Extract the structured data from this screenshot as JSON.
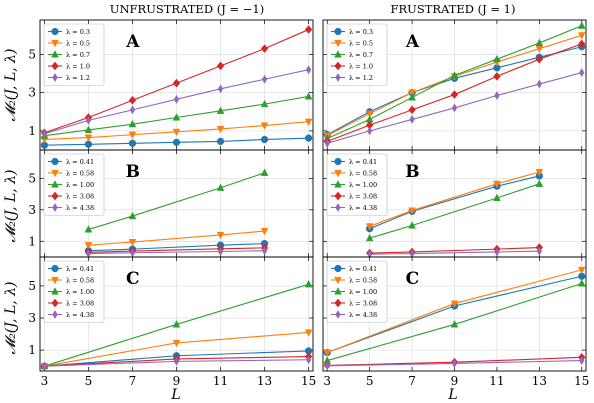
{
  "figure": {
    "column_titles": [
      "UNFRUSTRATED (J = −1)",
      "FRUSTRATED (J = 1)"
    ],
    "ylabel": "𝓜₂(J, L, λ)",
    "xlabel": "L",
    "colors": {
      "blue": "#1f77b4",
      "orange": "#ff7f0e",
      "green": "#2ca02c",
      "red": "#d62728",
      "purple": "#9467bd",
      "grid": "#d9d9d9"
    }
  },
  "chart_data": [
    {
      "type": "line",
      "panel": "A",
      "column": "unfrustrated",
      "xlim": [
        2.8,
        15.2
      ],
      "ylim": [
        0,
        6.8
      ],
      "xticks": [
        3,
        5,
        7,
        9,
        11,
        13,
        15
      ],
      "yticks": [
        1,
        3,
        5
      ],
      "legend_position": "top-left",
      "x": [
        3,
        5,
        7,
        9,
        11,
        13,
        15
      ],
      "series": [
        {
          "name": "λ = 0.3",
          "color": "#1f77b4",
          "marker": "circle",
          "values": [
            0.25,
            0.3,
            0.35,
            0.4,
            0.45,
            0.55,
            0.62
          ]
        },
        {
          "name": "λ = 0.5",
          "color": "#ff7f0e",
          "marker": "triangle-down",
          "values": [
            0.55,
            0.65,
            0.8,
            0.95,
            1.1,
            1.28,
            1.48
          ]
        },
        {
          "name": "λ = 0.7",
          "color": "#2ca02c",
          "marker": "triangle-up",
          "values": [
            0.75,
            1.05,
            1.35,
            1.7,
            2.05,
            2.4,
            2.8
          ]
        },
        {
          "name": "λ = 1.0",
          "color": "#d62728",
          "marker": "diamond",
          "values": [
            0.9,
            1.7,
            2.6,
            3.5,
            4.4,
            5.3,
            6.3
          ]
        },
        {
          "name": "λ = 1.2",
          "color": "#9467bd",
          "marker": "diamond-thin",
          "values": [
            0.85,
            1.55,
            2.1,
            2.65,
            3.2,
            3.7,
            4.2
          ]
        }
      ]
    },
    {
      "type": "line",
      "panel": "A",
      "column": "frustrated",
      "xlim": [
        2.8,
        15.2
      ],
      "ylim": [
        0,
        6.8
      ],
      "xticks": [
        3,
        5,
        7,
        9,
        11,
        13,
        15
      ],
      "yticks": [
        1,
        3,
        5
      ],
      "legend_position": "top-left",
      "x": [
        3,
        5,
        7,
        9,
        11,
        13,
        15
      ],
      "series": [
        {
          "name": "λ = 0.3",
          "color": "#1f77b4",
          "marker": "circle",
          "values": [
            0.8,
            2.0,
            3.0,
            3.75,
            4.3,
            4.85,
            5.4
          ]
        },
        {
          "name": "λ = 0.5",
          "color": "#ff7f0e",
          "marker": "triangle-down",
          "values": [
            0.75,
            1.9,
            3.0,
            3.85,
            4.6,
            5.3,
            6.0
          ]
        },
        {
          "name": "λ = 0.7",
          "color": "#2ca02c",
          "marker": "triangle-up",
          "values": [
            0.6,
            1.6,
            2.75,
            3.9,
            4.75,
            5.6,
            6.5
          ]
        },
        {
          "name": "λ = 1.0",
          "color": "#d62728",
          "marker": "diamond",
          "values": [
            0.45,
            1.3,
            2.1,
            2.9,
            3.85,
            4.75,
            5.55
          ]
        },
        {
          "name": "λ = 1.2",
          "color": "#9467bd",
          "marker": "diamond-thin",
          "values": [
            0.35,
            1.0,
            1.6,
            2.2,
            2.85,
            3.45,
            4.05
          ]
        }
      ]
    },
    {
      "type": "line",
      "panel": "B",
      "column": "unfrustrated",
      "xlim": [
        2.8,
        15.2
      ],
      "ylim": [
        0,
        6.8
      ],
      "xticks": [
        3,
        5,
        7,
        9,
        11,
        13,
        15
      ],
      "yticks": [
        1,
        3,
        5
      ],
      "legend_position": "top-left",
      "x": [
        5,
        7,
        11,
        13
      ],
      "series": [
        {
          "name": "λ = 0.41",
          "color": "#1f77b4",
          "marker": "circle",
          "values": [
            0.4,
            0.5,
            0.75,
            0.85
          ]
        },
        {
          "name": "λ = 0.58",
          "color": "#ff7f0e",
          "marker": "triangle-down",
          "values": [
            0.75,
            0.95,
            1.4,
            1.65
          ]
        },
        {
          "name": "λ = 1.00",
          "color": "#2ca02c",
          "marker": "triangle-up",
          "values": [
            1.75,
            2.6,
            4.4,
            5.35
          ]
        },
        {
          "name": "λ = 3.08",
          "color": "#d62728",
          "marker": "diamond",
          "values": [
            0.3,
            0.38,
            0.52,
            0.58
          ]
        },
        {
          "name": "λ = 4.38",
          "color": "#9467bd",
          "marker": "diamond-thin",
          "values": [
            0.22,
            0.27,
            0.35,
            0.4
          ]
        }
      ]
    },
    {
      "type": "line",
      "panel": "B",
      "column": "frustrated",
      "xlim": [
        2.8,
        15.2
      ],
      "ylim": [
        0,
        6.8
      ],
      "xticks": [
        3,
        5,
        7,
        9,
        11,
        13,
        15
      ],
      "yticks": [
        1,
        3,
        5
      ],
      "legend_position": "top-left",
      "x": [
        5,
        7,
        11,
        13
      ],
      "series": [
        {
          "name": "λ = 0.41",
          "color": "#1f77b4",
          "marker": "circle",
          "values": [
            1.8,
            2.9,
            4.5,
            5.15
          ]
        },
        {
          "name": "λ = 0.58",
          "color": "#ff7f0e",
          "marker": "triangle-down",
          "values": [
            1.95,
            2.95,
            4.65,
            5.4
          ]
        },
        {
          "name": "λ = 1.00",
          "color": "#2ca02c",
          "marker": "triangle-up",
          "values": [
            1.2,
            2.0,
            3.75,
            4.65
          ]
        },
        {
          "name": "λ = 3.08",
          "color": "#d62728",
          "marker": "diamond",
          "values": [
            0.25,
            0.32,
            0.5,
            0.6
          ]
        },
        {
          "name": "λ = 4.38",
          "color": "#9467bd",
          "marker": "diamond-thin",
          "values": [
            0.18,
            0.22,
            0.32,
            0.37
          ]
        }
      ]
    },
    {
      "type": "line",
      "panel": "C",
      "column": "unfrustrated",
      "xlim": [
        2.8,
        15.2
      ],
      "ylim": [
        -0.3,
        6.8
      ],
      "xticks": [
        3,
        5,
        7,
        9,
        11,
        13,
        15
      ],
      "yticks": [
        1,
        3,
        5
      ],
      "legend_position": "top-left",
      "x": [
        3,
        9,
        15
      ],
      "series": [
        {
          "name": "λ = 0.41",
          "color": "#1f77b4",
          "marker": "circle",
          "values": [
            0.0,
            0.65,
            0.95
          ]
        },
        {
          "name": "λ = 0.58",
          "color": "#ff7f0e",
          "marker": "triangle-down",
          "values": [
            0.0,
            1.45,
            2.1
          ]
        },
        {
          "name": "λ = 1.00",
          "color": "#2ca02c",
          "marker": "triangle-up",
          "values": [
            0.0,
            2.6,
            5.1
          ]
        },
        {
          "name": "λ = 3.08",
          "color": "#d62728",
          "marker": "diamond",
          "values": [
            0.0,
            0.45,
            0.6
          ]
        },
        {
          "name": "λ = 4.38",
          "color": "#9467bd",
          "marker": "diamond-thin",
          "values": [
            0.0,
            0.3,
            0.4
          ]
        }
      ]
    },
    {
      "type": "line",
      "panel": "C",
      "column": "frustrated",
      "xlim": [
        2.8,
        15.2
      ],
      "ylim": [
        -0.3,
        6.8
      ],
      "xticks": [
        3,
        5,
        7,
        9,
        11,
        13,
        15
      ],
      "yticks": [
        1,
        3,
        5
      ],
      "legend_position": "top-left",
      "x": [
        3,
        9,
        15
      ],
      "series": [
        {
          "name": "λ = 0.41",
          "color": "#1f77b4",
          "marker": "circle",
          "values": [
            0.85,
            3.75,
            5.6
          ]
        },
        {
          "name": "λ = 0.58",
          "color": "#ff7f0e",
          "marker": "triangle-down",
          "values": [
            0.85,
            3.9,
            6.0
          ]
        },
        {
          "name": "λ = 1.00",
          "color": "#2ca02c",
          "marker": "triangle-up",
          "values": [
            0.35,
            2.6,
            5.15
          ]
        },
        {
          "name": "λ = 3.08",
          "color": "#d62728",
          "marker": "diamond",
          "values": [
            0.05,
            0.25,
            0.55
          ]
        },
        {
          "name": "λ = 4.38",
          "color": "#9467bd",
          "marker": "diamond-thin",
          "values": [
            0.02,
            0.17,
            0.35
          ]
        }
      ]
    }
  ]
}
